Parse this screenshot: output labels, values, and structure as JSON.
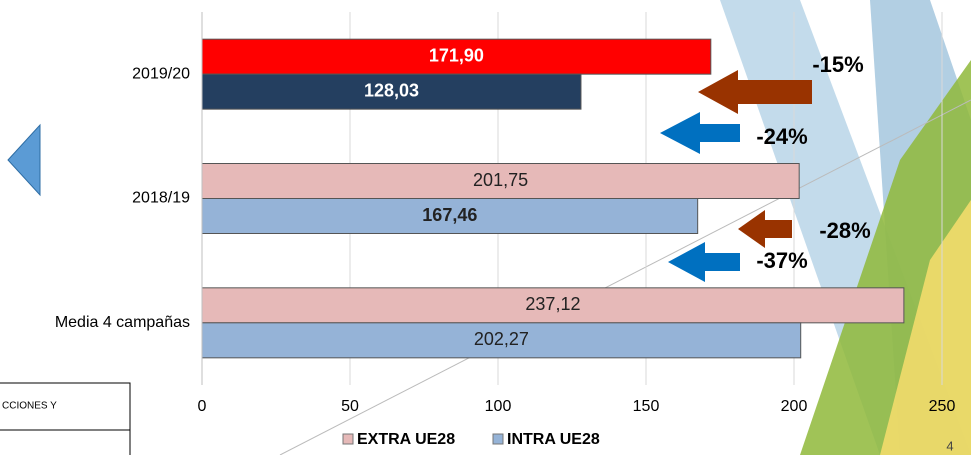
{
  "chart_data": {
    "type": "bar",
    "orientation": "horizontal",
    "categories": [
      "2019/20",
      "2018/19",
      "Media 4 campañas"
    ],
    "series": [
      {
        "name": "EXTRA UE28",
        "color": "#e6b9b8",
        "colors": [
          "#ff0000",
          "#e6b9b8",
          "#e6b9b8"
        ],
        "values": [
          171.9,
          201.75,
          237.12
        ],
        "value_labels": [
          "171,90",
          "201,75",
          "237,12"
        ]
      },
      {
        "name": "INTRA UE28",
        "color": "#95b3d7",
        "colors": [
          "#243f60",
          "#95b3d7",
          "#95b3d7"
        ],
        "values": [
          128.03,
          167.46,
          202.27
        ],
        "value_labels": [
          "128,03",
          "167,46",
          "202,27"
        ]
      }
    ],
    "xlim": [
      0,
      250
    ],
    "xticks": [
      0,
      50,
      100,
      150,
      200,
      250
    ],
    "grid": true,
    "legend": "bottom",
    "annotations": [
      "-15%",
      "-24%",
      "-28%",
      "-37%"
    ],
    "footer_text": "CCIONES Y",
    "page_number": "4"
  }
}
